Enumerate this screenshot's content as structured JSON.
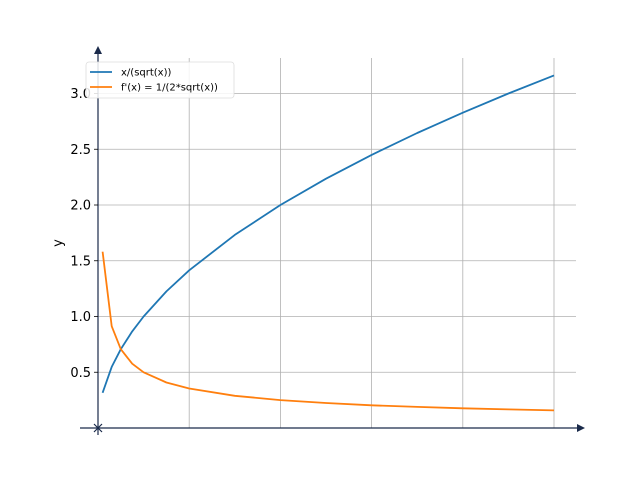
{
  "chart_data": {
    "type": "line",
    "title": "",
    "xlabel": "",
    "ylabel": "y",
    "xlim": [
      0,
      10.5
    ],
    "ylim": [
      0,
      3.3
    ],
    "yticks": [
      0.5,
      1.0,
      1.5,
      2.0,
      2.5,
      3.0
    ],
    "ytick_labels": [
      "0.5",
      "1.0",
      "1.5",
      "2.0",
      "2.5",
      "3.0"
    ],
    "xgrid": [
      2,
      4,
      6,
      8,
      10
    ],
    "grid": true,
    "legend_position": "top-left",
    "series": [
      {
        "name": "x/(sqrt(x))",
        "color": "#1f77b4",
        "x": [
          0.1,
          0.3,
          0.5,
          0.75,
          1,
          1.5,
          2,
          3,
          4,
          5,
          6,
          7,
          8,
          9,
          10
        ],
        "y": [
          0.316,
          0.548,
          0.707,
          0.866,
          1.0,
          1.225,
          1.414,
          1.732,
          2.0,
          2.236,
          2.449,
          2.646,
          2.828,
          3.0,
          3.162
        ]
      },
      {
        "name": "f'(x) = 1/(2*sqrt(x))",
        "color": "#ff7f0e",
        "x": [
          0.1,
          0.3,
          0.5,
          0.75,
          1,
          1.5,
          2,
          3,
          4,
          5,
          6,
          7,
          8,
          9,
          10
        ],
        "y": [
          1.581,
          0.913,
          0.707,
          0.577,
          0.5,
          0.408,
          0.354,
          0.289,
          0.25,
          0.224,
          0.204,
          0.189,
          0.177,
          0.167,
          0.158
        ]
      }
    ]
  }
}
